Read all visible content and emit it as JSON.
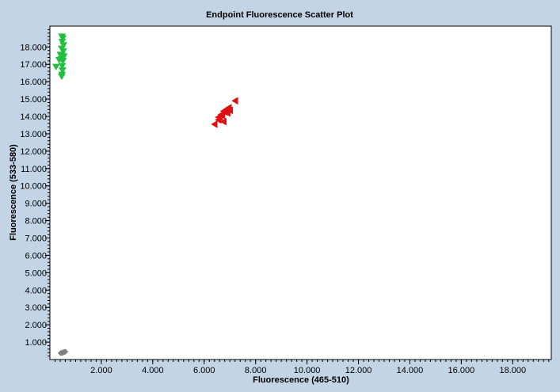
{
  "chart_data": {
    "type": "scatter",
    "title": "Endpoint Fluorescence Scatter Plot",
    "xlabel": "Fluorescence (465-510)",
    "ylabel": "Fluorescence (533-580)",
    "xlim": [
      0,
      19500
    ],
    "ylim": [
      0,
      19200
    ],
    "x_ticks": [
      2000,
      4000,
      6000,
      8000,
      10000,
      12000,
      14000,
      16000,
      18000
    ],
    "x_tick_labels": [
      "2.000",
      "4.000",
      "6.000",
      "8.000",
      "10.000",
      "12.000",
      "14.000",
      "16.000",
      "18.000"
    ],
    "y_ticks": [
      1000,
      2000,
      3000,
      4000,
      5000,
      6000,
      7000,
      8000,
      9000,
      10000,
      11000,
      12000,
      13000,
      14000,
      15000,
      16000,
      17000,
      18000
    ],
    "y_tick_labels": [
      "1.000",
      "2.000",
      "3.000",
      "4.000",
      "5.000",
      "6.000",
      "7.000",
      "8.000",
      "9.000",
      "10.000",
      "11.000",
      "12.000",
      "13.000",
      "14.000",
      "15.000",
      "16.000",
      "17.000",
      "18.000"
    ],
    "grid": false,
    "series": [
      {
        "marker": "triangle-down",
        "color": "#22c040",
        "points": [
          [
            470,
            18600
          ],
          [
            500,
            18500
          ],
          [
            480,
            18300
          ],
          [
            530,
            18100
          ],
          [
            460,
            17900
          ],
          [
            520,
            17750
          ],
          [
            410,
            17550
          ],
          [
            470,
            17500
          ],
          [
            540,
            17450
          ],
          [
            440,
            17300
          ],
          [
            360,
            17250
          ],
          [
            510,
            17200
          ],
          [
            480,
            16900
          ],
          [
            240,
            16850
          ],
          [
            490,
            16650
          ],
          [
            470,
            16400
          ],
          [
            460,
            16300
          ]
        ]
      },
      {
        "marker": "triangle-left",
        "color": "#e01010",
        "points": [
          [
            6400,
            13550
          ],
          [
            6550,
            13800
          ],
          [
            6600,
            13950
          ],
          [
            6700,
            14050
          ],
          [
            6750,
            13700
          ],
          [
            6800,
            14250
          ],
          [
            6850,
            14400
          ],
          [
            6950,
            14500
          ],
          [
            7000,
            14350
          ],
          [
            6900,
            14200
          ],
          [
            6650,
            14100
          ],
          [
            7200,
            14900
          ],
          [
            6750,
            14300
          ],
          [
            6550,
            13950
          ]
        ]
      },
      {
        "marker": "diamond",
        "color": "#808080",
        "points": [
          [
            420,
            370
          ],
          [
            480,
            390
          ],
          [
            520,
            410
          ],
          [
            560,
            430
          ],
          [
            600,
            450
          ],
          [
            500,
            400
          ],
          [
            460,
            380
          ]
        ]
      }
    ]
  }
}
